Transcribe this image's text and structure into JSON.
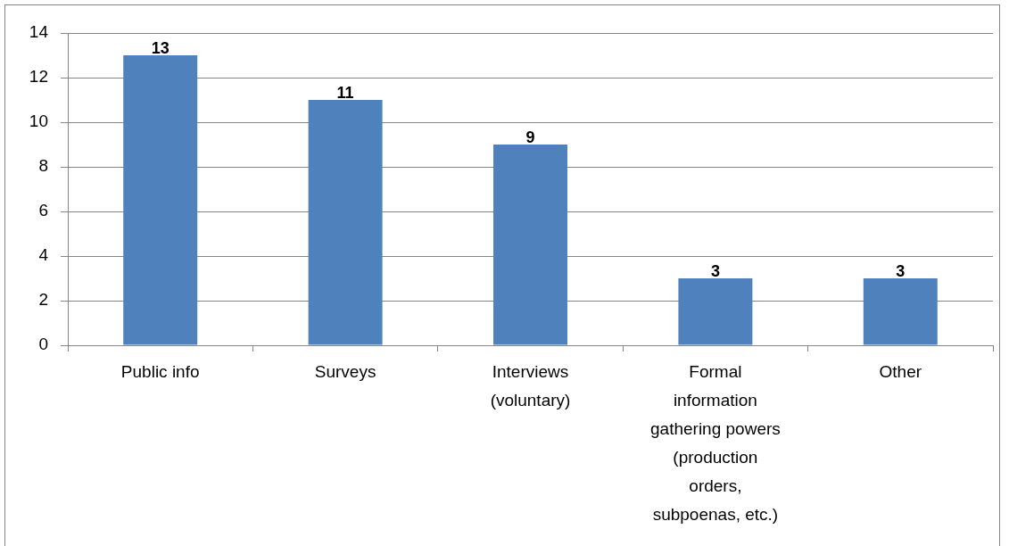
{
  "chart_data": {
    "type": "bar",
    "categories": [
      "Public info",
      "Surveys",
      "Interviews (voluntary)",
      "Formal information gathering powers (production orders, subpoenas, etc.)",
      "Other"
    ],
    "values": [
      13,
      11,
      9,
      3,
      3
    ],
    "color": "#4f81bd",
    "ylim": [
      0,
      14
    ],
    "yticks": [
      0,
      2,
      4,
      6,
      8,
      10,
      12,
      14
    ],
    "grid": "y",
    "data_labels": true
  }
}
